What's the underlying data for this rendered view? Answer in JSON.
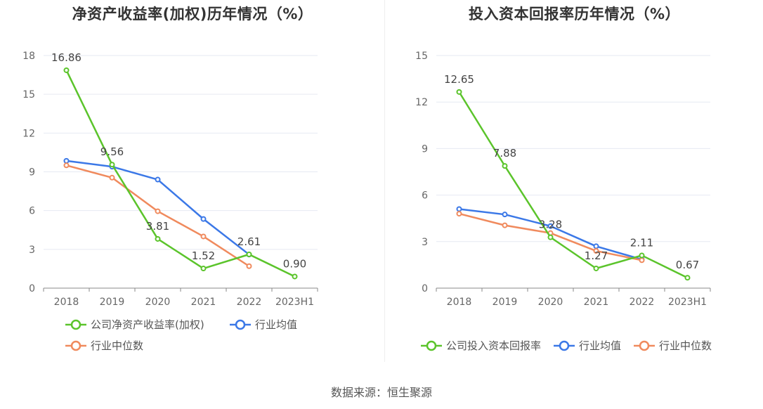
{
  "source_label": "数据来源：恒生聚源",
  "chart_data": [
    {
      "type": "line",
      "title": "净资产收益率(加权)历年情况（%）",
      "categories": [
        "2018",
        "2019",
        "2020",
        "2021",
        "2022",
        "2023H1"
      ],
      "yticks": [
        "0",
        "3",
        "6",
        "9",
        "12",
        "15",
        "18"
      ],
      "ylim": [
        0,
        18
      ],
      "grid": true,
      "legend_position": "bottom-left",
      "series": [
        {
          "name": "公司净资产收益率(加权)",
          "color": "#5bc42b",
          "values": [
            16.86,
            9.56,
            3.81,
            1.52,
            2.61,
            0.9
          ],
          "labels": [
            "16.86",
            "9.56",
            "3.81",
            "1.52",
            "2.61",
            "0.90"
          ]
        },
        {
          "name": "行业均值",
          "color": "#3b78e7",
          "values": [
            9.85,
            9.4,
            8.4,
            5.35,
            2.6,
            null
          ]
        },
        {
          "name": "行业中位数",
          "color": "#f08a5d",
          "values": [
            9.5,
            8.55,
            5.95,
            4.0,
            1.7,
            null
          ]
        }
      ]
    },
    {
      "type": "line",
      "title": "投入资本回报率历年情况（%）",
      "categories": [
        "2018",
        "2019",
        "2020",
        "2021",
        "2022",
        "2023H1"
      ],
      "yticks": [
        "0",
        "3",
        "6",
        "9",
        "12",
        "15"
      ],
      "ylim": [
        0,
        15
      ],
      "grid": true,
      "legend_position": "bottom",
      "series": [
        {
          "name": "公司投入资本回报率",
          "color": "#5bc42b",
          "values": [
            12.65,
            7.88,
            3.28,
            1.27,
            2.11,
            0.67
          ],
          "labels": [
            "12.65",
            "7.88",
            "3.28",
            "1.27",
            "2.11",
            "0.67"
          ]
        },
        {
          "name": "行业均值",
          "color": "#3b78e7",
          "values": [
            5.1,
            4.75,
            4.0,
            2.7,
            1.85,
            null
          ]
        },
        {
          "name": "行业中位数",
          "color": "#f08a5d",
          "values": [
            4.8,
            4.05,
            3.55,
            2.4,
            1.8,
            null
          ]
        }
      ]
    }
  ]
}
